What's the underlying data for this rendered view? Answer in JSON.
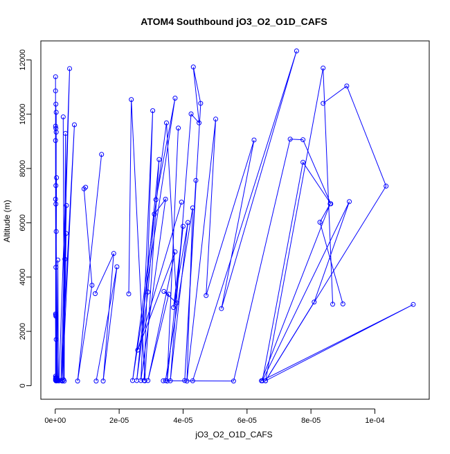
{
  "chart_data": {
    "type": "scatter",
    "title": "ATOM4 Southbound jO3_O2_O1D_CAFS",
    "xlabel": "jO3_O2_O1D_CAFS",
    "ylabel": "Altitude (m)",
    "xlim": [
      -4.5e-06,
      0.000117
    ],
    "ylim": [
      -500,
      12700
    ],
    "x_ticks": [
      {
        "value": 0,
        "label": "0e+00"
      },
      {
        "value": 2e-05,
        "label": "2e-05"
      },
      {
        "value": 4e-05,
        "label": "4e-05"
      },
      {
        "value": 6e-05,
        "label": "6e-05"
      },
      {
        "value": 8e-05,
        "label": "8e-05"
      },
      {
        "value": 0.0001,
        "label": "1e-04"
      }
    ],
    "y_ticks": [
      {
        "value": 0,
        "label": "0"
      },
      {
        "value": 2000,
        "label": "2000"
      },
      {
        "value": 4000,
        "label": "4000"
      },
      {
        "value": 6000,
        "label": "6000"
      },
      {
        "value": 8000,
        "label": "8000"
      },
      {
        "value": 10000,
        "label": "10000"
      },
      {
        "value": 12000,
        "label": "12000"
      }
    ],
    "grid": false,
    "legend": "none",
    "style": "points connected by lines",
    "color": "#0000ff",
    "series": [
      {
        "x": [
          1e-07,
          2e-07,
          1e-07,
          3e-07,
          2e-07,
          1e-07,
          3e-07,
          2e-07,
          1e-07,
          4e-07,
          2e-07,
          1e-07,
          3e-07,
          2e-07,
          1e-07,
          2e-07,
          4e-07,
          1e-07,
          2e-07,
          3e-07,
          1e-07,
          4e-07,
          2e-07,
          5e-07,
          3e-07,
          6e-07,
          8e-07,
          1e-06
        ],
        "y": [
          11380,
          180,
          10860,
          200,
          10370,
          250,
          10070,
          300,
          9560,
          180,
          9480,
          350,
          9340,
          200,
          9030,
          280,
          7660,
          200,
          7370,
          300,
          6870,
          180,
          6690,
          250,
          5680,
          200,
          4630,
          180
        ]
      },
      {
        "x": [
          2e-07,
          3e-07,
          1e-07,
          4e-07,
          2e-07,
          6e-07,
          3e-07,
          8e-07,
          2e-07,
          5e-07
        ],
        "y": [
          4360,
          220,
          2640,
          180,
          2560,
          260,
          1700,
          200,
          2600,
          220
        ]
      },
      {
        "x": [
          1.2e-06,
          4.5e-06,
          1.8e-06,
          6e-06,
          2.2e-06,
          3.5e-06
        ],
        "y": [
          180,
          11680,
          200,
          9610,
          170,
          6640
        ]
      },
      {
        "x": [
          2.5e-06,
          2.8e-06,
          3.2e-06,
          2.6e-06,
          3.4e-06,
          3e-06,
          2.2e-06
        ],
        "y": [
          9900,
          170,
          9290,
          220,
          5610,
          4660,
          180
        ]
      },
      {
        "x": [
          9.5e-06,
          9e-06,
          1.15e-05,
          7e-06,
          1.45e-05
        ],
        "y": [
          7310,
          7250,
          3700,
          170,
          8520
        ]
      },
      {
        "x": [
          1.25e-05,
          1.83e-05,
          1.5e-05,
          1.93e-05,
          1.28e-05
        ],
        "y": [
          3390,
          4870,
          170,
          4380,
          170
        ]
      },
      {
        "x": [
          2.3e-05,
          2.38e-05,
          2.8e-05,
          3.25e-05,
          2.55e-05,
          2.9e-05,
          3.1e-05,
          3.45e-05,
          2.68e-05,
          3.05e-05,
          2.78e-05
        ],
        "y": [
          3380,
          10540,
          180,
          8330,
          190,
          3450,
          6320,
          6870,
          190,
          10130,
          190
        ]
      },
      {
        "x": [
          3.15e-05,
          3.75e-05,
          2.42e-05,
          3.48e-05,
          3.8e-05,
          3.4e-05,
          3.55e-05,
          2.9e-05,
          3.75e-05,
          2.58e-05,
          3.95e-05
        ],
        "y": [
          6850,
          10590,
          190,
          9680,
          3050,
          3470,
          3370,
          190,
          4930,
          1310,
          6760
        ]
      },
      {
        "x": [
          3.85e-05,
          3.5e-05,
          4e-05,
          3.7e-05,
          4.15e-05,
          3.6e-05,
          4.25e-05,
          4.5e-05,
          4.32e-05,
          4.55e-05,
          4.05e-05,
          4.4e-05
        ],
        "y": [
          9490,
          170,
          5870,
          2880,
          6010,
          180,
          10010,
          9680,
          11740,
          10400,
          190,
          7560
        ]
      },
      {
        "x": [
          3.45e-05,
          4.3e-05,
          4.12e-05,
          5.02e-05,
          4.72e-05,
          6.22e-05,
          5.2e-05,
          7.55e-05,
          4.3e-05
        ],
        "y": [
          190,
          6550,
          170,
          9820,
          3320,
          9050,
          2840,
          12330,
          180
        ]
      },
      {
        "x": [
          3.38e-05,
          5.58e-05,
          7.35e-05,
          7.75e-05,
          8.62e-05,
          7.75e-05,
          6.48e-05,
          9.2e-05,
          8.1e-05,
          6.58e-05,
          8.38e-05,
          8.68e-05
        ],
        "y": [
          180,
          170,
          9080,
          9060,
          6700,
          8230,
          180,
          6780,
          3080,
          180,
          11700,
          3000
        ]
      },
      {
        "x": [
          8.38e-05,
          9.12e-05,
          0.0001035,
          6.58e-05,
          0.000112,
          6.45e-05,
          8.6e-05,
          8.28e-05,
          9e-05
        ],
        "y": [
          10400,
          11040,
          7350,
          180,
          2990,
          180,
          6700,
          6020,
          3010
        ]
      }
    ]
  }
}
